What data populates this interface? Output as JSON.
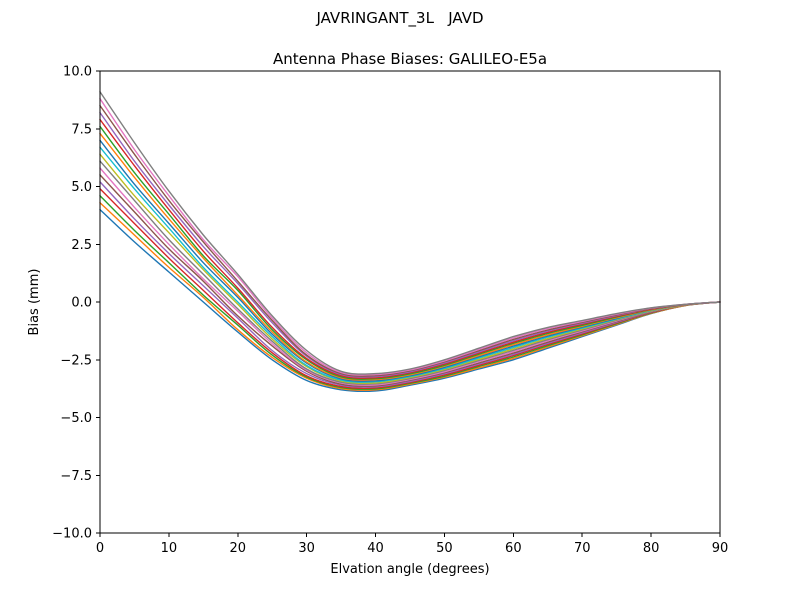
{
  "chart_data": {
    "type": "line",
    "suptitle": "JAVRINGANT_3L   JAVD",
    "title": "Antenna Phase Biases: GALILEO-E5a",
    "xlabel": "Elvation angle (degrees)",
    "ylabel": "Bias (mm)",
    "xlim": [
      0,
      90
    ],
    "ylim": [
      -10,
      10
    ],
    "grid": false,
    "legend": "none",
    "xticks": [
      0,
      10,
      20,
      30,
      40,
      50,
      60,
      70,
      80,
      90
    ],
    "xtick_labels": [
      "0",
      "10",
      "20",
      "30",
      "40",
      "50",
      "60",
      "70",
      "80",
      "90"
    ],
    "yticks": [
      10,
      7.5,
      5,
      2.5,
      0,
      -2.5,
      -5,
      -7.5,
      -10
    ],
    "ytick_labels": [
      "10.0",
      "7.5",
      "5.0",
      "2.5",
      "0.0",
      "−2.5",
      "−5.0",
      "−7.5",
      "−10.0"
    ],
    "x": [
      0,
      5,
      10,
      15,
      20,
      25,
      30,
      35,
      40,
      45,
      50,
      55,
      60,
      65,
      70,
      75,
      80,
      85,
      90
    ],
    "series": [
      {
        "color": "#1f77b4",
        "values": [
          4.0,
          2.6,
          1.3,
          0.0,
          -1.3,
          -2.5,
          -3.4,
          -3.8,
          -3.85,
          -3.6,
          -3.3,
          -2.9,
          -2.5,
          -2.0,
          -1.5,
          -1.0,
          -0.5,
          -0.15,
          0
        ]
      },
      {
        "color": "#ff7f0e",
        "values": [
          4.3,
          2.9,
          1.5,
          0.2,
          -1.2,
          -2.4,
          -3.3,
          -3.75,
          -3.8,
          -3.56,
          -3.25,
          -2.85,
          -2.44,
          -1.95,
          -1.46,
          -0.97,
          -0.49,
          -0.15,
          0
        ]
      },
      {
        "color": "#2ca02c",
        "values": [
          4.6,
          3.1,
          1.7,
          0.3,
          -1.0,
          -2.3,
          -3.25,
          -3.7,
          -3.76,
          -3.52,
          -3.21,
          -2.79,
          -2.38,
          -1.89,
          -1.42,
          -0.94,
          -0.47,
          -0.14,
          0
        ]
      },
      {
        "color": "#d62728",
        "values": [
          4.9,
          3.4,
          1.9,
          0.5,
          -0.9,
          -2.2,
          -3.2,
          -3.66,
          -3.72,
          -3.48,
          -3.16,
          -2.74,
          -2.32,
          -1.84,
          -1.38,
          -0.91,
          -0.46,
          -0.14,
          0
        ]
      },
      {
        "color": "#9467bd",
        "values": [
          5.2,
          3.6,
          2.1,
          0.7,
          -0.7,
          -2.1,
          -3.1,
          -3.6,
          -3.67,
          -3.44,
          -3.11,
          -2.69,
          -2.27,
          -1.79,
          -1.34,
          -0.88,
          -0.44,
          -0.14,
          0
        ]
      },
      {
        "color": "#8c564b",
        "values": [
          5.5,
          3.9,
          2.3,
          0.9,
          -0.6,
          -1.9,
          -3.0,
          -3.56,
          -3.63,
          -3.39,
          -3.06,
          -2.64,
          -2.21,
          -1.74,
          -1.29,
          -0.85,
          -0.43,
          -0.14,
          0
        ]
      },
      {
        "color": "#e377c2",
        "values": [
          5.8,
          4.1,
          2.5,
          1.0,
          -0.4,
          -1.8,
          -2.95,
          -3.5,
          -3.59,
          -3.35,
          -3.02,
          -2.58,
          -2.15,
          -1.68,
          -1.25,
          -0.82,
          -0.41,
          -0.13,
          0
        ]
      },
      {
        "color": "#7f7f7f",
        "values": [
          6.1,
          4.4,
          2.7,
          1.2,
          -0.3,
          -1.7,
          -2.9,
          -3.47,
          -3.54,
          -3.31,
          -2.97,
          -2.53,
          -2.09,
          -1.63,
          -1.21,
          -0.79,
          -0.4,
          -0.13,
          0
        ]
      },
      {
        "color": "#bcbd22",
        "values": [
          6.4,
          4.6,
          3.0,
          1.4,
          -0.1,
          -1.6,
          -2.8,
          -3.42,
          -3.5,
          -3.27,
          -2.92,
          -2.48,
          -2.03,
          -1.58,
          -1.17,
          -0.76,
          -0.38,
          -0.13,
          0
        ]
      },
      {
        "color": "#17becf",
        "values": [
          6.7,
          4.9,
          3.2,
          1.5,
          0.0,
          -1.5,
          -2.75,
          -3.38,
          -3.45,
          -3.23,
          -2.88,
          -2.42,
          -1.97,
          -1.52,
          -1.13,
          -0.74,
          -0.37,
          -0.12,
          0
        ]
      },
      {
        "color": "#1f77b4",
        "values": [
          7.0,
          5.1,
          3.4,
          1.7,
          0.2,
          -1.4,
          -2.65,
          -3.33,
          -3.41,
          -3.19,
          -2.83,
          -2.37,
          -1.91,
          -1.47,
          -1.09,
          -0.71,
          -0.35,
          -0.12,
          0
        ]
      },
      {
        "color": "#ff7f0e",
        "values": [
          7.3,
          5.4,
          3.6,
          1.9,
          0.3,
          -1.3,
          -2.6,
          -3.28,
          -3.36,
          -3.15,
          -2.78,
          -2.32,
          -1.85,
          -1.42,
          -1.05,
          -0.68,
          -0.34,
          -0.12,
          0
        ]
      },
      {
        "color": "#2ca02c",
        "values": [
          7.6,
          5.6,
          3.8,
          2.0,
          0.5,
          -1.2,
          -2.5,
          -3.24,
          -3.32,
          -3.11,
          -2.74,
          -2.26,
          -1.79,
          -1.36,
          -1.01,
          -0.65,
          -0.32,
          -0.11,
          0
        ]
      },
      {
        "color": "#d62728",
        "values": [
          7.9,
          5.9,
          4.0,
          2.2,
          0.6,
          -1.1,
          -2.45,
          -3.19,
          -3.28,
          -3.06,
          -2.69,
          -2.21,
          -1.74,
          -1.31,
          -0.96,
          -0.62,
          -0.31,
          -0.11,
          0
        ]
      },
      {
        "color": "#9467bd",
        "values": [
          8.2,
          6.1,
          4.2,
          2.4,
          0.8,
          -0.9,
          -2.35,
          -3.14,
          -3.23,
          -3.02,
          -2.64,
          -2.16,
          -1.68,
          -1.26,
          -0.92,
          -0.59,
          -0.29,
          -0.11,
          0
        ]
      },
      {
        "color": "#8c564b",
        "values": [
          8.5,
          6.4,
          4.4,
          2.6,
          0.9,
          -0.8,
          -2.3,
          -3.1,
          -3.19,
          -2.98,
          -2.59,
          -2.11,
          -1.62,
          -1.21,
          -0.88,
          -0.56,
          -0.28,
          -0.11,
          0
        ]
      },
      {
        "color": "#e377c2",
        "values": [
          8.8,
          6.6,
          4.6,
          2.7,
          1.1,
          -0.7,
          -2.2,
          -3.05,
          -3.14,
          -2.94,
          -2.55,
          -2.05,
          -1.56,
          -1.15,
          -0.84,
          -0.53,
          -0.26,
          -0.1,
          0
        ]
      },
      {
        "color": "#7f7f7f",
        "values": [
          9.1,
          6.9,
          4.8,
          2.9,
          1.2,
          -0.6,
          -2.1,
          -3.0,
          -3.1,
          -2.9,
          -2.5,
          -2.0,
          -1.5,
          -1.1,
          -0.8,
          -0.5,
          -0.25,
          -0.1,
          0
        ]
      }
    ]
  }
}
